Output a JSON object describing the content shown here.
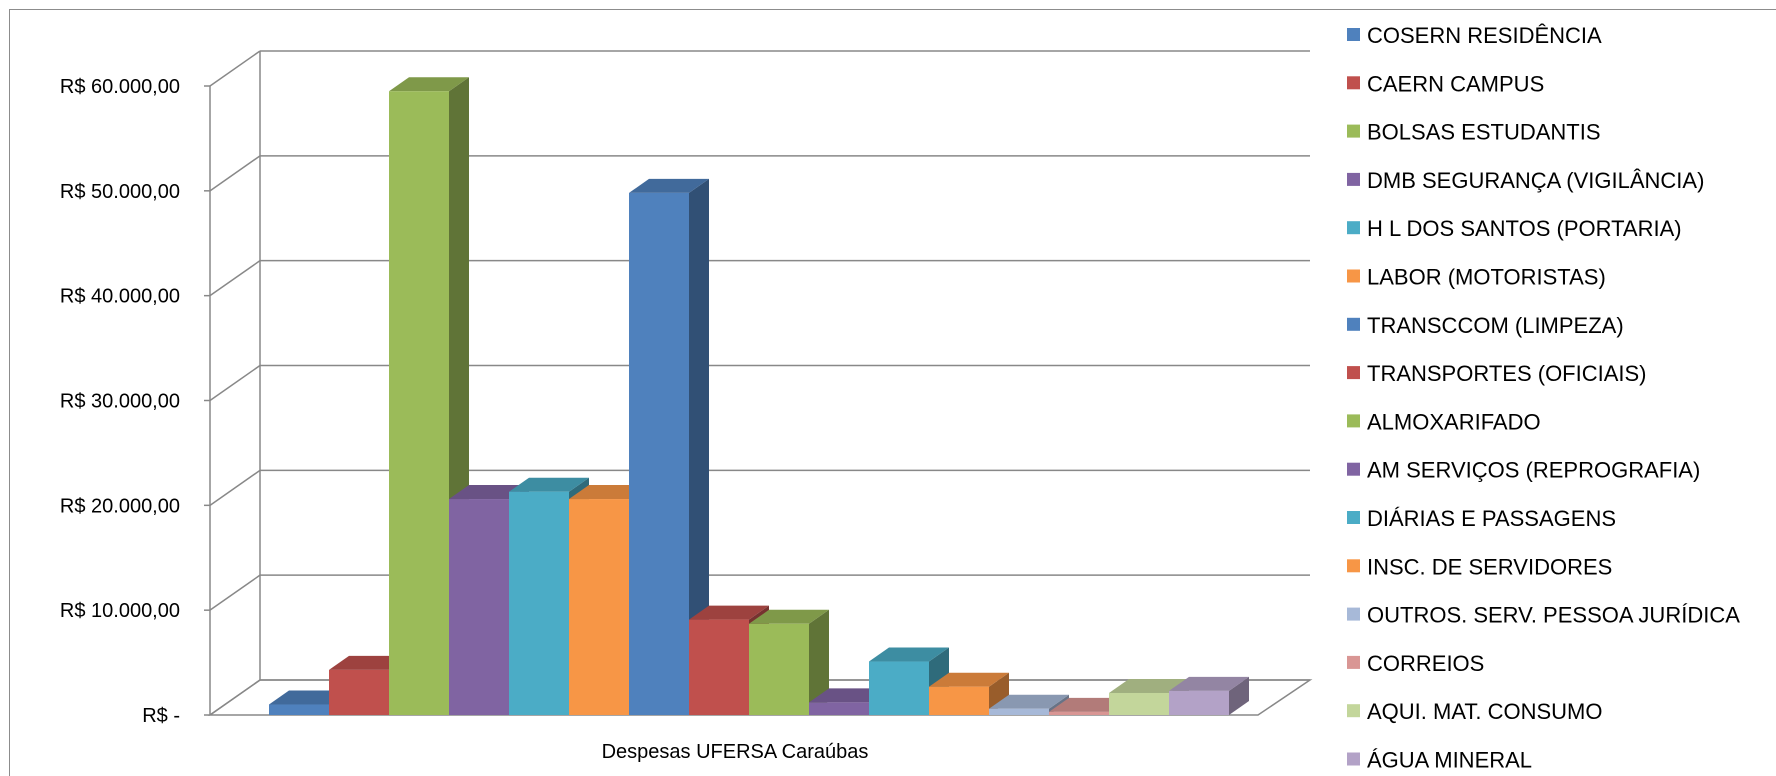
{
  "chart_data": {
    "type": "bar",
    "style": "3d-clustered",
    "title": "",
    "xlabel": "",
    "ylabel": "",
    "categories": [
      "Despesas UFERSA Caraúbas"
    ],
    "ylim": [
      0,
      60000
    ],
    "y_ticks": [
      0,
      10000,
      20000,
      30000,
      40000,
      50000,
      60000
    ],
    "y_tick_labels": [
      "R$ -",
      "R$ 10.000,00",
      "R$ 20.000,00",
      "R$ 30.000,00",
      "R$ 40.000,00",
      "R$ 50.000,00",
      "R$ 60.000,00"
    ],
    "grid": true,
    "legend_position": "right",
    "series": [
      {
        "name": "COSERN RESIDÊNCIA",
        "values": [
          1000
        ],
        "color": "#4F81BD"
      },
      {
        "name": "CAERN CAMPUS",
        "values": [
          4300
        ],
        "color": "#C0504D"
      },
      {
        "name": "BOLSAS ESTUDANTIS",
        "values": [
          59500
        ],
        "color": "#9BBB59"
      },
      {
        "name": "DMB SEGURANÇA (VIGILÂNCIA)",
        "values": [
          20600
        ],
        "color": "#8064A2"
      },
      {
        "name": "H L DOS SANTOS (PORTARIA)",
        "values": [
          21300
        ],
        "color": "#4BACC6"
      },
      {
        "name": "LABOR (MOTORISTAS)",
        "values": [
          20600
        ],
        "color": "#F79646"
      },
      {
        "name": "TRANSCCOM (LIMPEZA)",
        "values": [
          49800
        ],
        "color": "#4F81BD"
      },
      {
        "name": "TRANSPORTES (OFICIAIS)",
        "values": [
          9100
        ],
        "color": "#C0504D"
      },
      {
        "name": "ALMOXARIFADO",
        "values": [
          8700
        ],
        "color": "#9BBB59"
      },
      {
        "name": "AM SERVIÇOS (REPROGRAFIA)",
        "values": [
          1200
        ],
        "color": "#8064A2"
      },
      {
        "name": "DIÁRIAS E PASSAGENS",
        "values": [
          5100
        ],
        "color": "#4BACC6"
      },
      {
        "name": "INSC. DE SERVIDORES",
        "values": [
          2700
        ],
        "color": "#F79646"
      },
      {
        "name": "OUTROS. SERV. PESSOA JURÍDICA",
        "values": [
          600
        ],
        "color": "#A7B9D8"
      },
      {
        "name": "CORREIOS",
        "values": [
          300
        ],
        "color": "#D99694"
      },
      {
        "name": "AQUI. MAT. CONSUMO",
        "values": [
          2100
        ],
        "color": "#C3D69B"
      },
      {
        "name": "ÁGUA MINERAL",
        "values": [
          2300
        ],
        "color": "#B3A2C7"
      }
    ]
  }
}
